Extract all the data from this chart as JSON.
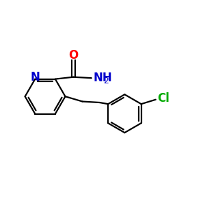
{
  "background_color": "#ffffff",
  "bond_color": "#000000",
  "n_color": "#0000cc",
  "o_color": "#ff0000",
  "cl_color": "#00aa00",
  "nh2_color": "#0000cc",
  "line_width": 1.6,
  "figsize": [
    3.0,
    3.0
  ],
  "dpi": 100,
  "xlim": [
    0,
    10
  ],
  "ylim": [
    0,
    10
  ]
}
